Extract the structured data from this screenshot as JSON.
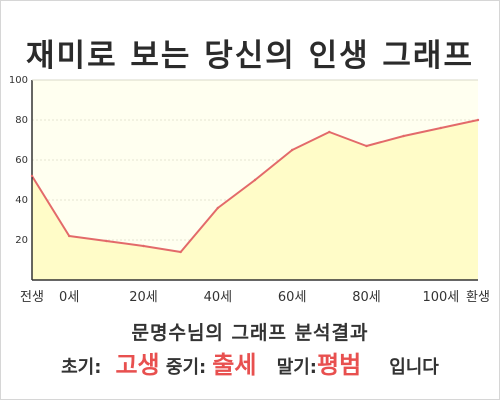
{
  "title": "재미로 보는 당신의 인생 그래프",
  "summary": "문명수님의 그래프 분석결과",
  "verdict": {
    "early_label": "초기:",
    "early_value": "고생",
    "middle_label": "중기:",
    "middle_value": "출세",
    "late_label": "말기:",
    "late_value": "평범",
    "ending": "입니다"
  },
  "colors": {
    "line": "#e36a6a",
    "fill": "#fffcc8",
    "plot_bg": "#fffff0",
    "highlight": "#e8504f"
  },
  "chart_data": {
    "type": "area",
    "title": "재미로 보는 당신의 인생 그래프",
    "xlabel": "",
    "ylabel": "",
    "x": [
      -10,
      0,
      10,
      20,
      30,
      40,
      50,
      60,
      70,
      80,
      90,
      100,
      110
    ],
    "values": [
      52,
      22,
      19.5,
      17,
      14,
      36,
      50,
      65,
      74,
      67,
      72,
      76,
      80
    ],
    "x_ticks": [
      {
        "x": -10,
        "label": "전생"
      },
      {
        "x": 0,
        "label": "0세"
      },
      {
        "x": 20,
        "label": "20세"
      },
      {
        "x": 40,
        "label": "40세"
      },
      {
        "x": 60,
        "label": "60세"
      },
      {
        "x": 80,
        "label": "80세"
      },
      {
        "x": 100,
        "label": "100세"
      },
      {
        "x": 110,
        "label": "환생"
      }
    ],
    "y_ticks": [
      20,
      40,
      60,
      80,
      100
    ],
    "xlim": [
      -10,
      110
    ],
    "ylim": [
      0,
      100
    ],
    "grid": true
  }
}
